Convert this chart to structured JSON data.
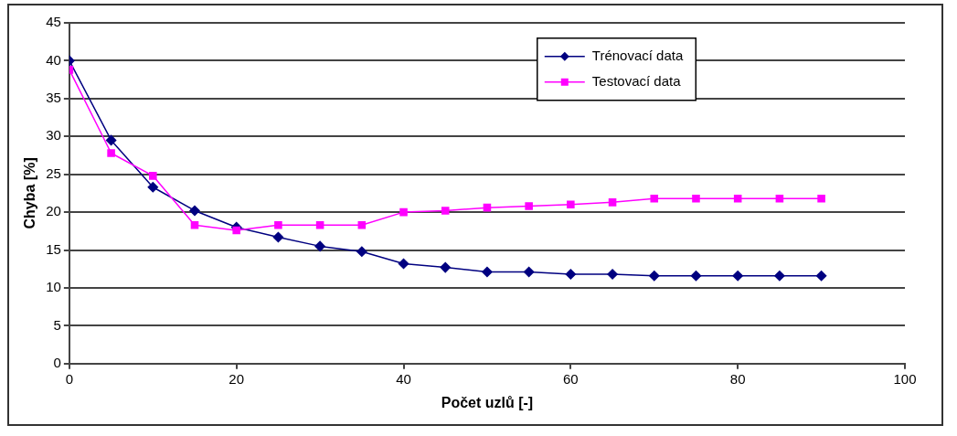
{
  "chart_data": {
    "type": "line",
    "xlabel": "Počet uzlů [-]",
    "ylabel": "Chyba [%]",
    "x": [
      0,
      5,
      10,
      15,
      20,
      25,
      30,
      35,
      40,
      45,
      50,
      55,
      60,
      65,
      70,
      75,
      80,
      85,
      90
    ],
    "series": [
      {
        "name": "Trénovací data",
        "color": "#000080",
        "marker": "diamond",
        "values": [
          40,
          29.5,
          23.3,
          20.2,
          18,
          16.7,
          15.5,
          14.8,
          13.2,
          12.7,
          12.1,
          12.1,
          11.8,
          11.8,
          11.6,
          11.6,
          11.6,
          11.6,
          11.6
        ]
      },
      {
        "name": "Testovací data",
        "color": "#ff00ff",
        "marker": "square",
        "values": [
          38.8,
          27.8,
          24.8,
          18.3,
          17.6,
          18.3,
          18.3,
          18.3,
          20,
          20.2,
          20.6,
          20.8,
          21,
          21.3,
          21.8,
          21.8,
          21.8,
          21.8,
          21.8
        ]
      }
    ],
    "xlim": [
      0,
      100
    ],
    "xticks": [
      0,
      20,
      40,
      60,
      80,
      100
    ],
    "ylim": [
      0,
      45
    ],
    "yticks": [
      0,
      5,
      10,
      15,
      20,
      25,
      30,
      35,
      40,
      45
    ],
    "grid": "y",
    "legend": "top right",
    "line_style": "solid"
  }
}
